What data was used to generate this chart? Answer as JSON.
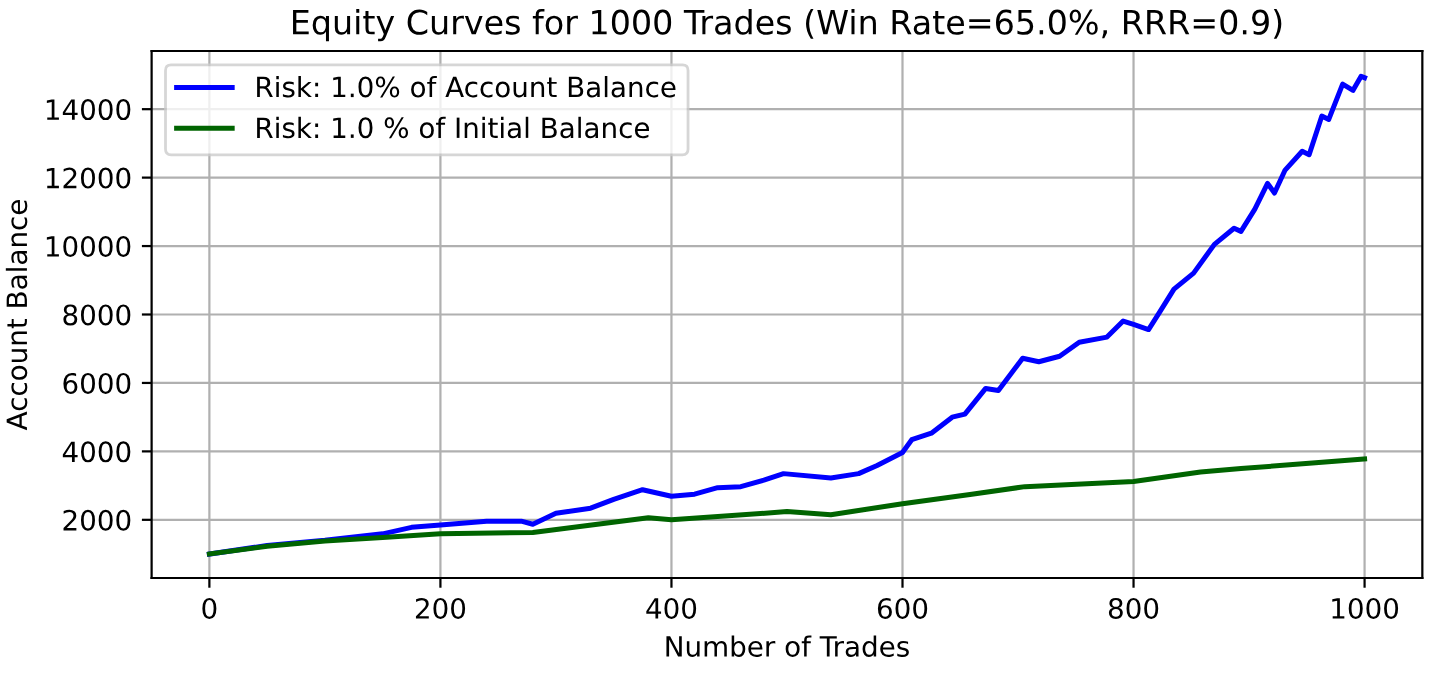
{
  "chart_data": {
    "type": "line",
    "title": "Equity Curves for 1000 Trades (Win Rate=65.0%, RRR=0.9)",
    "xlabel": "Number of Trades",
    "ylabel": "Account Balance",
    "series": [
      {
        "name": "Risk: 1.0% of Account Balance",
        "color": "#0000ff",
        "x": [
          0,
          50,
          100,
          150,
          175,
          200,
          240,
          270,
          280,
          300,
          330,
          350,
          375,
          400,
          420,
          440,
          460,
          480,
          497,
          538,
          562,
          578,
          600,
          608,
          625,
          643,
          654,
          672,
          683,
          704,
          718,
          736,
          753,
          777,
          791,
          800,
          813,
          823,
          835,
          852,
          870,
          887,
          893,
          905,
          916,
          922,
          931,
          946,
          952,
          963,
          969,
          981,
          990,
          997,
          1000
        ],
        "values": [
          1000,
          1250,
          1400,
          1590,
          1780,
          1850,
          1960,
          1960,
          1870,
          2190,
          2340,
          2600,
          2880,
          2690,
          2750,
          2940,
          2970,
          3160,
          3350,
          3220,
          3350,
          3590,
          3970,
          4340,
          4530,
          5000,
          5090,
          5840,
          5780,
          6720,
          6620,
          6780,
          7190,
          7340,
          7810,
          7710,
          7560,
          8090,
          8740,
          9210,
          10050,
          10520,
          10430,
          11080,
          11830,
          11550,
          12210,
          12770,
          12670,
          13800,
          13700,
          14730,
          14550,
          14960,
          14920
        ]
      },
      {
        "name": "Risk: 1.0 % of Initial Balance",
        "color": "#006400",
        "x": [
          0,
          50,
          100,
          150,
          200,
          280,
          380,
          400,
          500,
          538,
          600,
          660,
          706,
          800,
          858,
          893,
          952,
          1000
        ],
        "values": [
          1000,
          1230,
          1380,
          1480,
          1590,
          1630,
          2060,
          2000,
          2240,
          2150,
          2470,
          2750,
          2970,
          3120,
          3400,
          3500,
          3650,
          3780
        ]
      }
    ],
    "xlim": [
      -50,
      1050
    ],
    "ylim": [
      300,
      15700
    ],
    "xticks": [
      0,
      200,
      400,
      600,
      800,
      1000
    ],
    "yticks": [
      2000,
      4000,
      6000,
      8000,
      10000,
      12000,
      14000
    ],
    "grid": true,
    "legend": "top left",
    "line_style": "solid",
    "marker": "none"
  }
}
